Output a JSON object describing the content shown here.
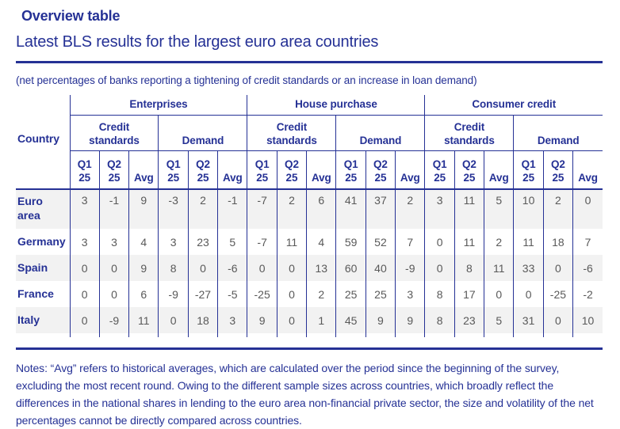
{
  "header": {
    "title": "Overview table",
    "subtitle": "Latest BLS results for the largest euro area countries",
    "caption": "(net percentages of banks reporting a tightening of credit standards or an increase in loan demand)"
  },
  "chart_data": {
    "type": "table",
    "corner_label": "Country",
    "groups": [
      {
        "label": "Enterprises"
      },
      {
        "label": "House purchase"
      },
      {
        "label": "Consumer credit"
      }
    ],
    "subgroup_labels": [
      "Credit\nstandards",
      "Demand"
    ],
    "column_labels": [
      "Q1\n25",
      "Q2\n25",
      "Avg"
    ],
    "rows": [
      {
        "country": "Euro\narea",
        "values": [
          3,
          -1,
          9,
          -3,
          2,
          -1,
          -7,
          2,
          6,
          41,
          37,
          2,
          3,
          11,
          5,
          10,
          2,
          0
        ]
      },
      {
        "country": "Germany",
        "values": [
          3,
          3,
          4,
          3,
          23,
          5,
          -7,
          11,
          4,
          59,
          52,
          7,
          0,
          11,
          2,
          11,
          18,
          7
        ]
      },
      {
        "country": "Spain",
        "values": [
          0,
          0,
          9,
          8,
          0,
          -6,
          0,
          0,
          13,
          60,
          40,
          -9,
          0,
          8,
          11,
          33,
          0,
          -6
        ]
      },
      {
        "country": "France",
        "values": [
          0,
          0,
          6,
          -9,
          -27,
          -5,
          -25,
          0,
          2,
          25,
          25,
          3,
          8,
          17,
          0,
          0,
          -25,
          -2
        ]
      },
      {
        "country": "Italy",
        "values": [
          0,
          -9,
          11,
          0,
          18,
          3,
          9,
          0,
          1,
          45,
          9,
          9,
          8,
          23,
          5,
          31,
          0,
          10
        ]
      }
    ]
  },
  "notes": {
    "text": "Notes: “Avg” refers to historical averages, which are calculated over the period since the beginning of the survey, excluding the most recent round. Owing to the different sample sizes across countries, which broadly reflect the differences in the national shares in lending to the euro area non-financial private sector, the size and volatility of the net percentages cannot be directly compared across countries."
  },
  "colors": {
    "accent_blue": "#253195",
    "value_gray": "#595959",
    "row_stripe": "#f2f2f2"
  }
}
